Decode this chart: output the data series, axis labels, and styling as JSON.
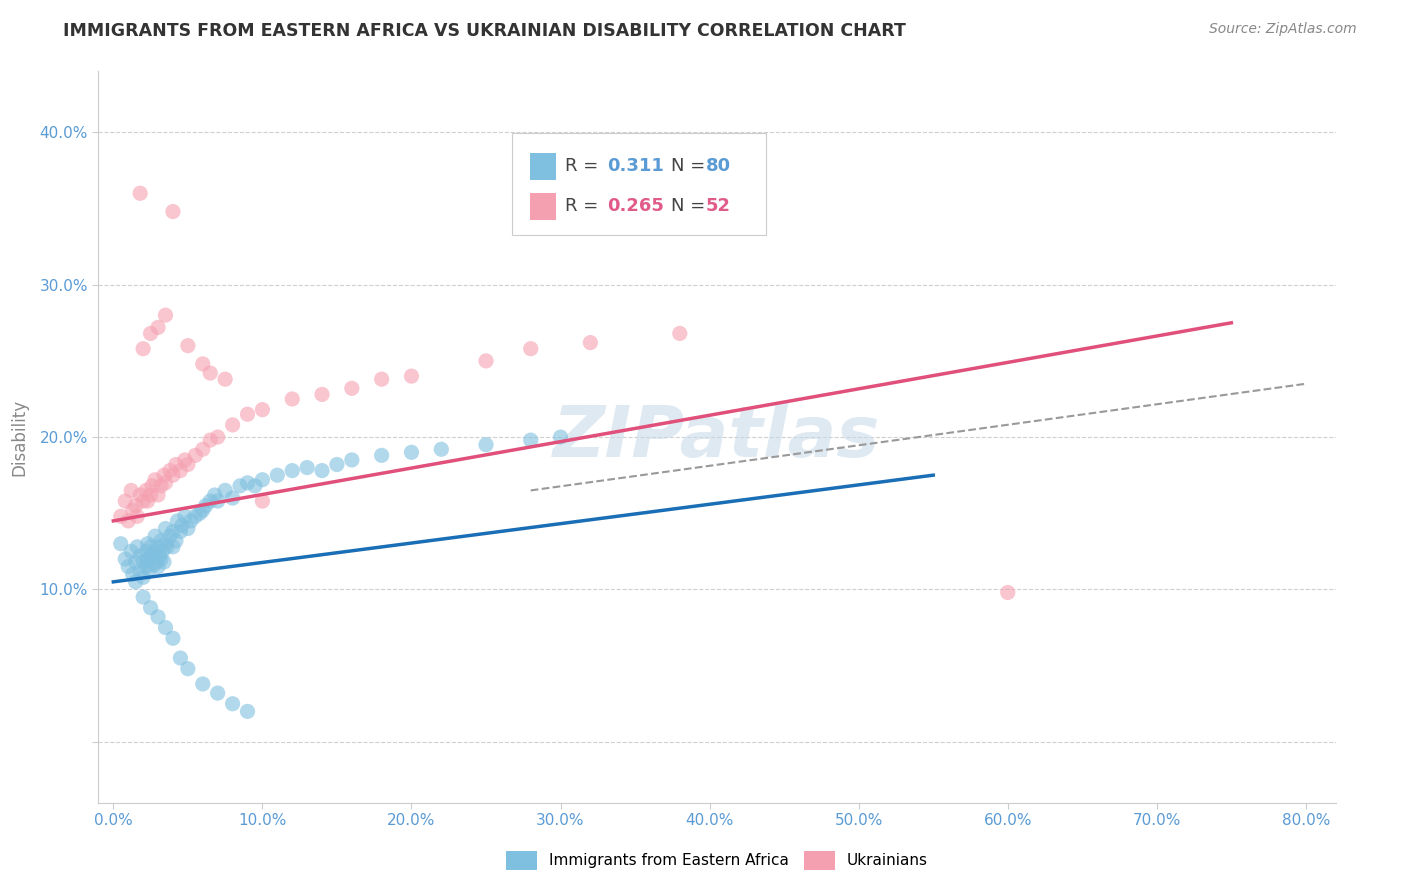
{
  "title": "IMMIGRANTS FROM EASTERN AFRICA VS UKRAINIAN DISABILITY CORRELATION CHART",
  "source": "Source: ZipAtlas.com",
  "ylabel": "Disability",
  "xlim": [
    -0.01,
    0.82
  ],
  "ylim": [
    -0.04,
    0.44
  ],
  "xticks": [
    0.0,
    0.1,
    0.2,
    0.3,
    0.4,
    0.5,
    0.6,
    0.7,
    0.8
  ],
  "xticklabels": [
    "0.0%",
    "10.0%",
    "20.0%",
    "30.0%",
    "40.0%",
    "50.0%",
    "60.0%",
    "70.0%",
    "80.0%"
  ],
  "yticks": [
    0.0,
    0.1,
    0.2,
    0.3,
    0.4
  ],
  "yticklabels": [
    "",
    "10.0%",
    "20.0%",
    "30.0%",
    "40.0%"
  ],
  "blue_color": "#7fbfdf",
  "pink_color": "#f5a0b0",
  "blue_line_color": "#1a6eb5",
  "pink_line_color": "#e0507a",
  "dashed_line_color": "#999999",
  "watermark_color": "#c5d8e8",
  "blue_line_x0": 0.0,
  "blue_line_y0": 0.105,
  "blue_line_x1": 0.55,
  "blue_line_y1": 0.175,
  "pink_line_x0": 0.0,
  "pink_line_y0": 0.145,
  "pink_line_x1": 0.75,
  "pink_line_y1": 0.275,
  "dash_line_x0": 0.28,
  "dash_line_y0": 0.165,
  "dash_line_x1": 0.8,
  "dash_line_y1": 0.235,
  "blue_scatter_x": [
    0.005,
    0.008,
    0.01,
    0.012,
    0.013,
    0.015,
    0.015,
    0.016,
    0.018,
    0.018,
    0.02,
    0.02,
    0.022,
    0.022,
    0.023,
    0.023,
    0.024,
    0.025,
    0.025,
    0.026,
    0.027,
    0.028,
    0.028,
    0.029,
    0.03,
    0.03,
    0.031,
    0.032,
    0.032,
    0.033,
    0.034,
    0.035,
    0.035,
    0.036,
    0.038,
    0.04,
    0.04,
    0.042,
    0.043,
    0.045,
    0.046,
    0.048,
    0.05,
    0.052,
    0.055,
    0.058,
    0.06,
    0.062,
    0.065,
    0.068,
    0.07,
    0.075,
    0.08,
    0.085,
    0.09,
    0.095,
    0.1,
    0.11,
    0.12,
    0.13,
    0.14,
    0.15,
    0.16,
    0.18,
    0.2,
    0.22,
    0.25,
    0.28,
    0.3,
    0.02,
    0.025,
    0.03,
    0.035,
    0.04,
    0.045,
    0.05,
    0.06,
    0.07,
    0.08,
    0.09
  ],
  "blue_scatter_y": [
    0.13,
    0.12,
    0.115,
    0.125,
    0.11,
    0.118,
    0.105,
    0.128,
    0.112,
    0.122,
    0.118,
    0.108,
    0.115,
    0.125,
    0.12,
    0.13,
    0.113,
    0.119,
    0.128,
    0.122,
    0.116,
    0.125,
    0.135,
    0.118,
    0.128,
    0.115,
    0.122,
    0.132,
    0.12,
    0.125,
    0.118,
    0.13,
    0.14,
    0.128,
    0.135,
    0.128,
    0.138,
    0.132,
    0.145,
    0.138,
    0.142,
    0.148,
    0.14,
    0.145,
    0.148,
    0.15,
    0.152,
    0.155,
    0.158,
    0.162,
    0.158,
    0.165,
    0.16,
    0.168,
    0.17,
    0.168,
    0.172,
    0.175,
    0.178,
    0.18,
    0.178,
    0.182,
    0.185,
    0.188,
    0.19,
    0.192,
    0.195,
    0.198,
    0.2,
    0.095,
    0.088,
    0.082,
    0.075,
    0.068,
    0.055,
    0.048,
    0.038,
    0.032,
    0.025,
    0.02
  ],
  "pink_scatter_x": [
    0.005,
    0.008,
    0.01,
    0.012,
    0.013,
    0.015,
    0.016,
    0.018,
    0.02,
    0.022,
    0.023,
    0.025,
    0.026,
    0.028,
    0.03,
    0.032,
    0.034,
    0.035,
    0.038,
    0.04,
    0.042,
    0.045,
    0.048,
    0.05,
    0.055,
    0.06,
    0.065,
    0.07,
    0.08,
    0.09,
    0.1,
    0.12,
    0.14,
    0.16,
    0.18,
    0.2,
    0.25,
    0.28,
    0.32,
    0.38,
    0.02,
    0.025,
    0.03,
    0.018,
    0.04,
    0.035,
    0.05,
    0.06,
    0.065,
    0.075,
    0.1,
    0.6
  ],
  "pink_scatter_y": [
    0.148,
    0.158,
    0.145,
    0.165,
    0.152,
    0.155,
    0.148,
    0.162,
    0.158,
    0.165,
    0.158,
    0.162,
    0.168,
    0.172,
    0.162,
    0.168,
    0.175,
    0.17,
    0.178,
    0.175,
    0.182,
    0.178,
    0.185,
    0.182,
    0.188,
    0.192,
    0.198,
    0.2,
    0.208,
    0.215,
    0.218,
    0.225,
    0.228,
    0.232,
    0.238,
    0.24,
    0.25,
    0.258,
    0.262,
    0.268,
    0.258,
    0.268,
    0.272,
    0.36,
    0.348,
    0.28,
    0.26,
    0.248,
    0.242,
    0.238,
    0.158,
    0.098
  ]
}
